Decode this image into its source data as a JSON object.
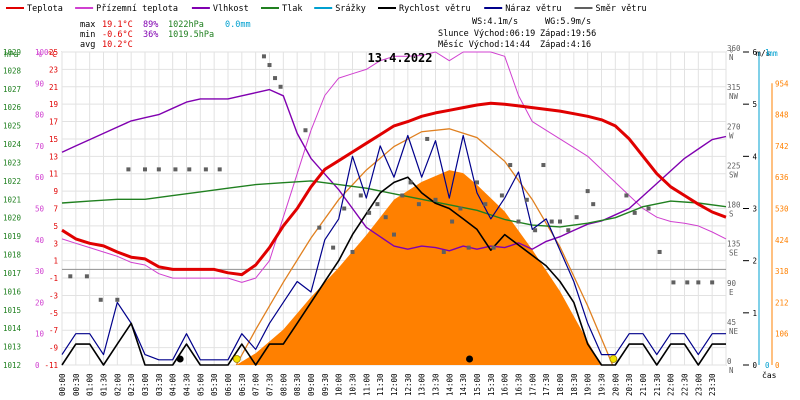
{
  "legend": [
    {
      "label": "Teplota",
      "color": "#e00000"
    },
    {
      "label": "Přízemní teplota",
      "color": "#d040d0"
    },
    {
      "label": "Vlhkost",
      "color": "#8000b0"
    },
    {
      "label": "Tlak",
      "color": "#208020"
    },
    {
      "label": "Srážky",
      "color": "#00a0d0"
    },
    {
      "label": "Rychlost větru",
      "color": "#000000"
    },
    {
      "label": "Náraz větru",
      "color": "#00008b"
    },
    {
      "label": "Směr větru",
      "color": "#606060"
    }
  ],
  "stats": {
    "max_label": "max",
    "max_temp": "19.1°C",
    "max_hum": "89%",
    "max_press": "1022hPa",
    "max_rain": "0.0mm",
    "min_label": "min",
    "min_temp": "-0.6°C",
    "min_hum": "36%",
    "min_press": "1019.5hPa",
    "avg_label": "avg",
    "avg_temp": "10.2°C",
    "ws": "WS:4.1m/s",
    "wg": "WG:5.9m/s",
    "sun_rise": "Slunce Východ:06:19",
    "sun_set": "Západ:19:56",
    "moon_rise": "Měsíc  Východ:14:44",
    "moon_set": "Západ:4:16"
  },
  "colors": {
    "temp": "#e00000",
    "ground": "#d040d0",
    "hum": "#8000b0",
    "press": "#208020",
    "rain": "#00a0d0",
    "wind": "#000000",
    "gust": "#00008b",
    "dir": "#606060",
    "solar": "#ff8000",
    "sunpath": "#e08020"
  },
  "chart_data": {
    "type": "line",
    "title": "13.4.2022",
    "x_unit_label": "čas",
    "x_tick_labels": [
      "00:00",
      "00:30",
      "01:00",
      "01:30",
      "02:00",
      "02:30",
      "03:00",
      "03:30",
      "04:00",
      "04:30",
      "05:00",
      "05:30",
      "06:00",
      "06:30",
      "07:00",
      "07:30",
      "08:00",
      "08:30",
      "09:00",
      "09:30",
      "10:00",
      "10:30",
      "11:00",
      "11:30",
      "12:00",
      "12:30",
      "13:00",
      "13:30",
      "14:00",
      "14:30",
      "15:00",
      "15:30",
      "16:00",
      "16:30",
      "17:00",
      "17:30",
      "18:00",
      "18:30",
      "19:00",
      "19:30",
      "20:00",
      "20:30",
      "21:00",
      "21:30",
      "22:00",
      "22:30",
      "23:00",
      "23:30"
    ],
    "x_range_hours": [
      0,
      24
    ],
    "axes": {
      "hpa": {
        "unit": "hPa",
        "ticks": [
          "1012",
          "1013",
          "1014",
          "1015",
          "1016",
          "1017",
          "1018",
          "1019",
          "1020",
          "1021",
          "1022",
          "1023",
          "1024",
          "1025",
          "1026",
          "1027",
          "1028",
          "1029"
        ],
        "range": [
          1012,
          1029
        ]
      },
      "percent": {
        "unit": "%",
        "ticks": [
          "0",
          "10",
          "20",
          "30",
          "40",
          "50",
          "60",
          "70",
          "80",
          "90",
          "100"
        ],
        "range": [
          0,
          100
        ]
      },
      "celsius": {
        "unit": "°C",
        "ticks": [
          "-11",
          "-9",
          "-7",
          "-5",
          "-3",
          "-1",
          "1",
          "3",
          "5",
          "7",
          "9",
          "11",
          "13",
          "15",
          "17",
          "19",
          "21",
          "23",
          "25"
        ],
        "range": [
          -11,
          25
        ]
      },
      "direction": {
        "unit": "°",
        "ticks": [
          "0",
          "45",
          "90",
          "135",
          "180",
          "225",
          "270",
          "315",
          "360"
        ],
        "cardinal": [
          "N",
          "NE",
          "E",
          "SE",
          "S",
          "SW",
          "W",
          "NW",
          "N"
        ],
        "range": [
          0,
          360
        ]
      },
      "wind": {
        "unit": "m/s",
        "ticks": [
          "0",
          "1",
          "2",
          "3",
          "4",
          "5",
          "6"
        ],
        "range": [
          0,
          6
        ]
      },
      "rain": {
        "unit": "mm",
        "ticks": [
          "0",
          "1"
        ],
        "range": [
          0,
          1
        ]
      },
      "solar": {
        "unit": "W/m²",
        "ticks": [
          "0",
          "106",
          "212",
          "318",
          "424",
          "530",
          "636",
          "742",
          "848",
          "954"
        ],
        "range": [
          0,
          1060
        ]
      }
    },
    "series": [
      {
        "name": "Teplota",
        "axis": "celsius",
        "x": [
          0,
          0.5,
          1,
          1.5,
          2,
          2.5,
          3,
          3.5,
          4,
          4.5,
          5,
          5.5,
          6,
          6.5,
          7,
          7.5,
          8,
          8.5,
          9,
          9.5,
          10,
          10.5,
          11,
          11.5,
          12,
          12.5,
          13,
          13.5,
          14,
          14.5,
          15,
          15.5,
          16,
          16.5,
          17,
          17.5,
          18,
          18.5,
          19,
          19.5,
          20,
          20.5,
          21,
          21.5,
          22,
          22.5,
          23,
          23.5,
          24
        ],
        "y": [
          4.5,
          3.5,
          3,
          2.7,
          2,
          1.4,
          1.2,
          0.3,
          0,
          0,
          0,
          0,
          -0.4,
          -0.6,
          0.5,
          2.5,
          5,
          7,
          9.5,
          11.5,
          12.5,
          13.5,
          14.5,
          15.5,
          16.5,
          17,
          17.6,
          18,
          18.3,
          18.6,
          18.9,
          19.1,
          19,
          18.8,
          18.6,
          18.4,
          18.2,
          17.9,
          17.6,
          17.2,
          16.5,
          15,
          13,
          11,
          9.5,
          8.5,
          7.5,
          6.6,
          6
        ]
      },
      {
        "name": "Přízemní teplota",
        "axis": "celsius",
        "x": [
          0,
          0.5,
          1,
          1.5,
          2,
          2.5,
          3,
          3.5,
          4,
          4.5,
          5,
          5.5,
          6,
          6.5,
          7,
          7.5,
          8,
          8.5,
          9,
          9.5,
          10,
          10.5,
          11,
          11.5,
          12,
          12.5,
          13,
          13.5,
          14,
          14.5,
          15,
          15.5,
          16,
          16.5,
          17,
          17.5,
          18,
          18.5,
          19,
          19.5,
          20,
          20.5,
          21,
          21.5,
          22,
          22.5,
          23,
          23.5,
          24
        ],
        "y": [
          3.5,
          3,
          2.5,
          2,
          1.5,
          0.8,
          0.5,
          -0.5,
          -1,
          -1,
          -1,
          -1,
          -1,
          -1.5,
          -1,
          1,
          6,
          11,
          16,
          20,
          22,
          22.5,
          23,
          24,
          24.5,
          24.5,
          24.6,
          25,
          24,
          25,
          25,
          25,
          24.5,
          20,
          17,
          16,
          15,
          14,
          13,
          11.5,
          10,
          8.5,
          7,
          6,
          5.5,
          5.3,
          5,
          4.3,
          3.5
        ]
      },
      {
        "name": "Vlhkost",
        "axis": "percent",
        "x": [
          0,
          0.5,
          1,
          1.5,
          2,
          2.5,
          3,
          3.5,
          4,
          4.5,
          5,
          5.5,
          6,
          6.5,
          7,
          7.5,
          8,
          8.5,
          9,
          9.5,
          10,
          10.5,
          11,
          11.5,
          12,
          12.5,
          13,
          13.5,
          14,
          14.5,
          15,
          15.5,
          16,
          16.5,
          17,
          17.5,
          18,
          18.5,
          19,
          19.5,
          20,
          20.5,
          21,
          21.5,
          22,
          22.5,
          23,
          23.5,
          24
        ],
        "y": [
          68,
          70,
          72,
          74,
          76,
          78,
          79,
          80,
          82,
          84,
          85,
          85,
          85,
          86,
          87,
          88,
          86,
          74,
          66,
          61,
          56,
          50,
          44,
          41,
          38,
          37,
          38,
          37.5,
          36.5,
          38,
          37,
          38,
          37.5,
          39,
          37,
          39.5,
          41,
          43,
          45,
          46,
          48,
          50,
          54,
          58,
          62,
          66,
          69,
          72,
          73
        ]
      },
      {
        "name": "Tlak",
        "axis": "hpa",
        "x": [
          0,
          1,
          2,
          3,
          4,
          5,
          6,
          7,
          8,
          9,
          10,
          11,
          12,
          13,
          14,
          15,
          16,
          17,
          18,
          19,
          20,
          21,
          22,
          23,
          24
        ],
        "y": [
          1020.8,
          1020.9,
          1021,
          1021,
          1021.2,
          1021.4,
          1021.6,
          1021.8,
          1021.9,
          1022,
          1021.8,
          1021.6,
          1021.3,
          1021,
          1020.7,
          1020.4,
          1019.9,
          1019.6,
          1019.5,
          1019.7,
          1020,
          1020.6,
          1020.9,
          1020.8,
          1020.6
        ]
      },
      {
        "name": "Rychlost větru",
        "axis": "wind",
        "x": [
          0,
          0.5,
          1,
          1.5,
          2,
          2.5,
          3,
          3.5,
          4,
          4.5,
          5,
          5.5,
          6,
          6.5,
          7,
          7.5,
          8,
          8.5,
          9,
          9.5,
          10,
          10.5,
          11,
          11.5,
          12,
          12.5,
          13,
          13.5,
          14,
          14.5,
          15,
          15.5,
          16,
          16.5,
          17,
          17.5,
          18,
          18.5,
          19,
          19.5,
          20,
          20.5,
          21,
          21.5,
          22,
          22.5,
          23,
          23.5,
          24
        ],
        "y": [
          0,
          0.4,
          0.4,
          0,
          0.4,
          0.8,
          0,
          0,
          0,
          0.4,
          0,
          0,
          0,
          0.4,
          0,
          0.4,
          0.4,
          0.8,
          1.2,
          1.6,
          2,
          2.5,
          2.9,
          3.3,
          3.5,
          3.6,
          3.3,
          3.1,
          3,
          2.8,
          2.6,
          2.2,
          2.5,
          2.3,
          2.1,
          1.9,
          1.6,
          1.2,
          0.4,
          0,
          0,
          0.4,
          0.4,
          0,
          0.4,
          0.4,
          0,
          0.4,
          0.4
        ]
      },
      {
        "name": "Náraz větru",
        "axis": "wind",
        "x": [
          0,
          0.5,
          1,
          1.5,
          2,
          2.5,
          3,
          3.5,
          4,
          4.5,
          5,
          5.5,
          6,
          6.5,
          7,
          7.5,
          8,
          8.5,
          9,
          9.5,
          10,
          10.5,
          11,
          11.5,
          12,
          12.5,
          13,
          13.5,
          14,
          14.5,
          15,
          15.5,
          16,
          16.5,
          17,
          17.5,
          18,
          18.5,
          19,
          19.5,
          20,
          20.5,
          21,
          21.5,
          22,
          22.5,
          23,
          23.5,
          24
        ],
        "y": [
          0.2,
          0.6,
          0.6,
          0.2,
          1.2,
          0.8,
          0.2,
          0.1,
          0.1,
          0.6,
          0.1,
          0.1,
          0.1,
          0.6,
          0.3,
          0.8,
          1.2,
          1.6,
          1.4,
          2.4,
          2.8,
          4,
          3.2,
          4.2,
          3.6,
          4.4,
          3.6,
          4.3,
          3.2,
          4.4,
          3.3,
          2.8,
          3.2,
          3.7,
          2.6,
          2.8,
          2.2,
          1.6,
          0.8,
          0.2,
          0.2,
          0.6,
          0.6,
          0.2,
          0.6,
          0.6,
          0.2,
          0.6,
          0.6
        ]
      },
      {
        "name": "Solar",
        "axis": "solar",
        "x": [
          6.3,
          7,
          8,
          9,
          10,
          11,
          12,
          13,
          14,
          14.5,
          15,
          16,
          17,
          18,
          19,
          19.5
        ],
        "y": [
          0,
          40,
          120,
          230,
          330,
          440,
          560,
          620,
          660,
          650,
          610,
          520,
          390,
          250,
          80,
          0
        ]
      },
      {
        "name": "Sun path",
        "axis": "solar",
        "x": [
          6.3,
          7,
          8,
          9,
          10,
          11,
          12,
          13,
          14,
          15,
          16,
          17,
          18,
          19,
          19.9
        ],
        "y": [
          0,
          120,
          280,
          430,
          560,
          660,
          740,
          790,
          800,
          770,
          690,
          560,
          400,
          200,
          0
        ]
      },
      {
        "name": "Směr větru",
        "axis": "direction",
        "type": "scatter",
        "x": [
          0.3,
          0.9,
          1.4,
          2,
          2.4,
          3,
          3.5,
          4.1,
          4.6,
          5.2,
          5.7,
          7.3,
          7.5,
          7.7,
          7.9,
          8.8,
          9.3,
          9.8,
          10.2,
          10.5,
          10.8,
          11.1,
          11.4,
          11.7,
          12,
          12.3,
          12.6,
          12.9,
          13.2,
          13.5,
          13.8,
          14.1,
          14.4,
          14.7,
          15,
          15.3,
          15.6,
          15.9,
          16.2,
          16.5,
          16.8,
          17.1,
          17.4,
          17.7,
          18,
          18.3,
          18.6,
          19,
          19.2,
          20.4,
          20.7,
          21.2,
          21.6,
          22.1,
          22.6,
          23,
          23.5
        ],
        "y": [
          102,
          102,
          75,
          75,
          225,
          225,
          225,
          225,
          225,
          225,
          225,
          355,
          345,
          330,
          320,
          270,
          158,
          135,
          180,
          130,
          195,
          175,
          185,
          170,
          150,
          195,
          210,
          185,
          260,
          190,
          130,
          165,
          180,
          135,
          210,
          185,
          135,
          195,
          230,
          165,
          190,
          155,
          230,
          165,
          165,
          155,
          170,
          200,
          185,
          195,
          175,
          180,
          130,
          95,
          95,
          95,
          95
        ]
      }
    ],
    "grid": true,
    "legend_position": "top"
  }
}
